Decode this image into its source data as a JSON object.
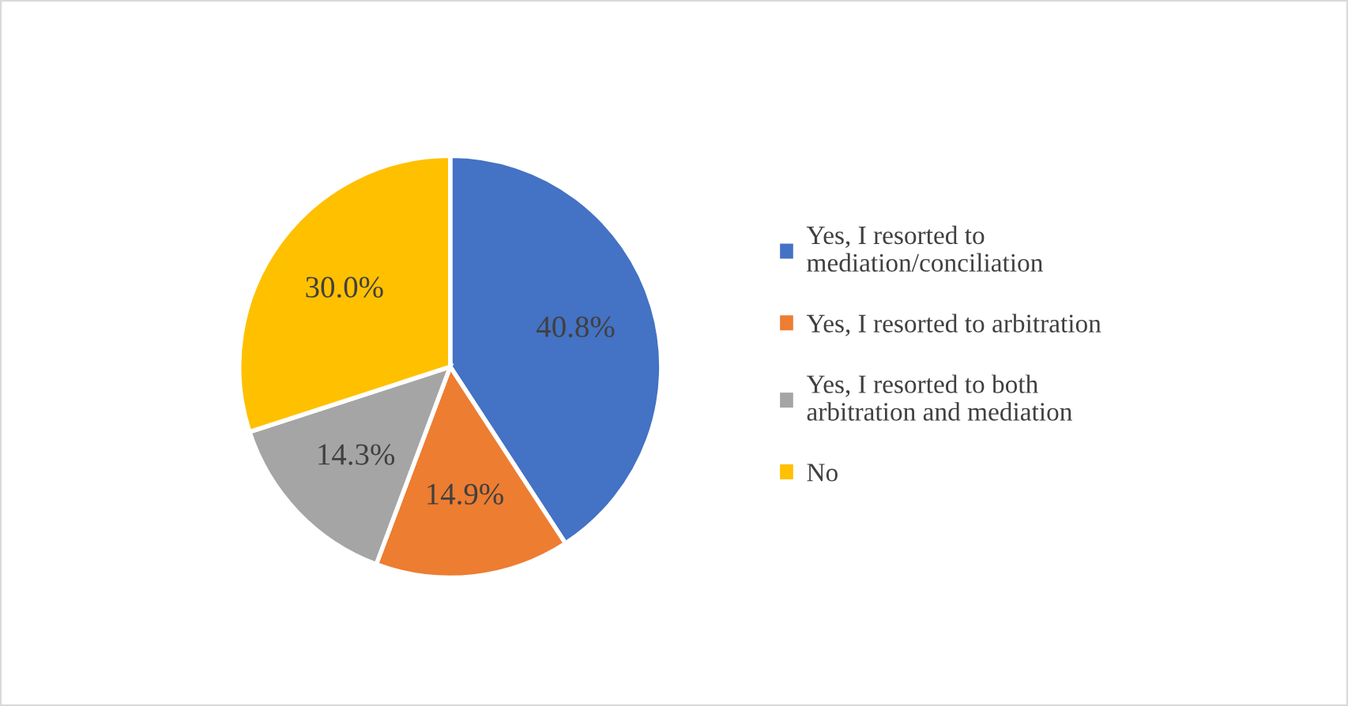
{
  "chart_data": {
    "type": "pie",
    "categories": [
      "Yes, I resorted to\nmediation/conciliation",
      "Yes, I resorted to arbitration",
      "Yes, I resorted to both\narbitration and mediation",
      "No"
    ],
    "values": [
      40.8,
      14.9,
      14.3,
      30.0
    ],
    "colors": [
      "#4472c4",
      "#ed7d31",
      "#a5a5a5",
      "#ffc000"
    ],
    "value_labels": [
      "40.8%",
      "14.9%",
      "14.3%",
      "30.0%"
    ],
    "legend": "right"
  }
}
